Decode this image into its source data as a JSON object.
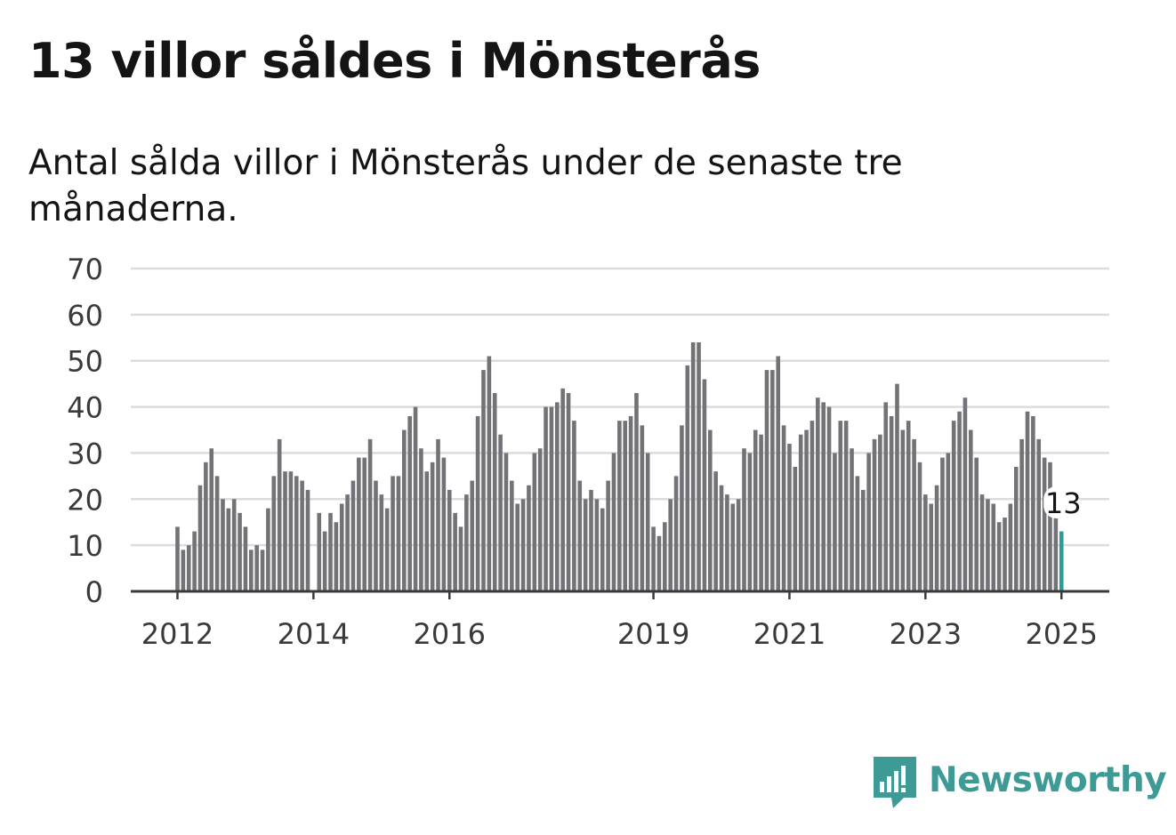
{
  "title": "13 villor såldes i Mönsterås",
  "subtitle": "Antal sålda villor i Mönsterås under de senaste tre månaderna.",
  "brand": {
    "name": "Newsworthy",
    "icon": "newsworthy-logo-icon"
  },
  "colors": {
    "bar": "#737276",
    "highlight": "#2a9d96",
    "grid": "#dcdcdc",
    "axis": "#3a3a3a",
    "brand": "#3e9a94"
  },
  "chart_data": {
    "type": "bar",
    "title": "13 villor såldes i Mönsterås",
    "xlabel": "",
    "ylabel": "",
    "ylim": [
      0,
      70
    ],
    "y_ticks": [
      0,
      10,
      20,
      30,
      40,
      50,
      60,
      70
    ],
    "x_ticks": [
      {
        "label": "2012",
        "index": 0
      },
      {
        "label": "2014",
        "index": 24
      },
      {
        "label": "2016",
        "index": 48
      },
      {
        "label": "2019",
        "index": 84
      },
      {
        "label": "2021",
        "index": 108
      },
      {
        "label": "2023",
        "index": 132
      },
      {
        "label": "2025",
        "index": 156
      }
    ],
    "grid": true,
    "first_period": "2012-01",
    "frequency": "monthly",
    "highlight_label": "13",
    "values": [
      14,
      9,
      10,
      13,
      23,
      28,
      31,
      25,
      20,
      18,
      20,
      17,
      14,
      9,
      10,
      9,
      18,
      25,
      33,
      26,
      26,
      25,
      24,
      22,
      null,
      17,
      13,
      17,
      15,
      19,
      21,
      24,
      29,
      29,
      33,
      24,
      21,
      18,
      25,
      25,
      35,
      38,
      40,
      31,
      26,
      28,
      33,
      29,
      22,
      17,
      14,
      21,
      24,
      38,
      48,
      51,
      43,
      34,
      30,
      24,
      19,
      20,
      23,
      30,
      31,
      40,
      40,
      41,
      44,
      43,
      37,
      24,
      20,
      22,
      20,
      18,
      24,
      30,
      37,
      37,
      38,
      43,
      36,
      30,
      14,
      12,
      15,
      20,
      25,
      36,
      49,
      54,
      54,
      46,
      35,
      26,
      23,
      21,
      19,
      20,
      31,
      30,
      35,
      34,
      48,
      48,
      51,
      36,
      32,
      27,
      34,
      35,
      37,
      42,
      41,
      40,
      30,
      37,
      37,
      31,
      25,
      22,
      30,
      33,
      34,
      41,
      38,
      45,
      35,
      37,
      33,
      28,
      21,
      19,
      23,
      29,
      30,
      37,
      39,
      42,
      35,
      29,
      21,
      20,
      19,
      15,
      16,
      19,
      27,
      33,
      39,
      38,
      33,
      29,
      28,
      16,
      13
    ]
  }
}
